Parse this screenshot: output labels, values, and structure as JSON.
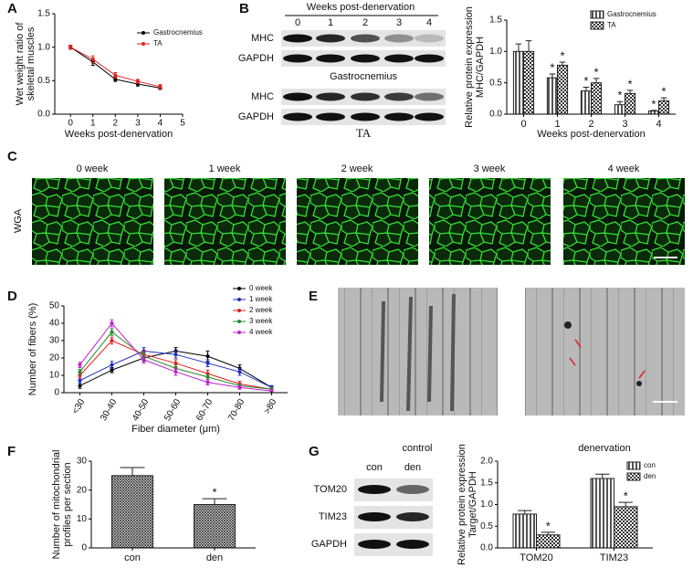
{
  "panel_labels": [
    "A",
    "B",
    "C",
    "D",
    "E",
    "F",
    "G"
  ],
  "blot_b": {
    "header": "Weeks post-denervation",
    "lanes": [
      "0",
      "1",
      "2",
      "3",
      "4"
    ],
    "rows": [
      "MHC",
      "GAPDH"
    ],
    "captions": [
      "Gastrocnemius",
      "TA"
    ]
  },
  "wga": {
    "row_label": "WGA",
    "columns": [
      "0 week",
      "1 week",
      "2 week",
      "3 week",
      "4 week"
    ]
  },
  "em": {
    "captions": [
      "control",
      "denervation"
    ]
  },
  "blot_g": {
    "lanes": [
      "con",
      "den"
    ],
    "rows": [
      "TOM20",
      "TIM23",
      "GAPDH"
    ]
  },
  "chart_data": [
    {
      "type": "line",
      "x": [
        0,
        1,
        2,
        3,
        4
      ],
      "xlim": [
        -0.7,
        5
      ],
      "xticks": [
        0,
        1,
        2,
        3,
        4,
        5
      ],
      "ylim": [
        0,
        1.5
      ],
      "yticks": [
        {
          "value": 0,
          "label": "0.0"
        },
        {
          "value": 0.5,
          "label": "0.5"
        },
        {
          "value": 1,
          "label": "1.0"
        },
        {
          "value": 1.5,
          "label": "1.5"
        }
      ],
      "ylabel_lines": [
        "Wet weight ratio of",
        "skeletal muscles"
      ],
      "xlabel": "Weeks post-denervation",
      "legend": "upper-right",
      "series": [
        {
          "name": "Gastrocnemius",
          "color": "#000000",
          "values": [
            1.0,
            0.78,
            0.52,
            0.45,
            0.39
          ],
          "errors": [
            0.03,
            0.05,
            0.03,
            0.03,
            0.02
          ]
        },
        {
          "name": "TA",
          "color": "#e02020",
          "values": [
            1.0,
            0.82,
            0.58,
            0.49,
            0.41
          ],
          "errors": [
            0.03,
            0.05,
            0.04,
            0.03,
            0.03
          ]
        }
      ]
    },
    {
      "type": "bar",
      "categories": [
        "0",
        "1",
        "2",
        "3",
        "4"
      ],
      "ylim": [
        0,
        1.5
      ],
      "yticks": [
        {
          "value": 0,
          "label": "0.0"
        },
        {
          "value": 0.5,
          "label": "0.5"
        },
        {
          "value": 1,
          "label": "1.0"
        },
        {
          "value": 1.5,
          "label": "1.5"
        }
      ],
      "ylabel_lines": [
        "Relative protein expression",
        "MHC/GAPDH"
      ],
      "xlabel": "Weeks post-denervation",
      "legend": "upper-right",
      "series": [
        {
          "name": "Gastrocnemius",
          "color": "#555555",
          "pattern": "stripes",
          "values": [
            1.0,
            0.58,
            0.37,
            0.15,
            0.05
          ],
          "errors": [
            0.12,
            0.06,
            0.06,
            0.05,
            0.01
          ],
          "significance": [
            null,
            "*",
            "*",
            "*",
            "*"
          ]
        },
        {
          "name": "TA",
          "color": "#555555",
          "pattern": "checker",
          "values": [
            1.0,
            0.78,
            0.5,
            0.33,
            0.21
          ],
          "errors": [
            0.17,
            0.05,
            0.07,
            0.05,
            0.05
          ],
          "significance": [
            null,
            "*",
            "*",
            "*",
            "*"
          ]
        }
      ]
    },
    {
      "type": "line",
      "categories": [
        "<30",
        "30-40",
        "40-50",
        "50-60",
        "60-70",
        "70-80",
        ">80"
      ],
      "ylim": [
        0,
        50
      ],
      "yticks": [
        0,
        10,
        20,
        30,
        40,
        50
      ],
      "ylabel_lines": [
        "Number of fibers (%)"
      ],
      "xlabel": "Fiber diameter (μm)",
      "legend": "upper-right",
      "series": [
        {
          "name": "0 week",
          "color": "#000000",
          "values": [
            4,
            13,
            20,
            24,
            21,
            14,
            3
          ],
          "errors": [
            1.5,
            1.5,
            2,
            2,
            3,
            2,
            1
          ]
        },
        {
          "name": "1 week",
          "color": "#1f2fbf",
          "values": [
            7,
            16,
            24,
            22,
            17,
            12,
            3
          ],
          "errors": [
            1.5,
            2,
            2,
            2,
            2,
            2,
            1
          ]
        },
        {
          "name": "2 week",
          "color": "#e02020",
          "values": [
            10,
            30,
            22,
            17,
            11,
            5,
            2
          ],
          "errors": [
            1.5,
            2,
            2,
            2,
            2,
            1.5,
            1
          ]
        },
        {
          "name": "3 week",
          "color": "#2a8a2a",
          "values": [
            12,
            35,
            21,
            14,
            9,
            4,
            2
          ],
          "errors": [
            1.5,
            2,
            2,
            2,
            1.5,
            1,
            1
          ]
        },
        {
          "name": "4 week",
          "color": "#c020d0",
          "values": [
            16,
            40,
            19,
            12,
            6,
            3,
            1
          ],
          "errors": [
            1.5,
            2,
            2,
            2,
            1.5,
            1,
            1
          ]
        }
      ]
    },
    {
      "type": "bar",
      "categories": [
        "con",
        "den"
      ],
      "ylim": [
        0,
        30
      ],
      "yticks": [
        0,
        10,
        20,
        30
      ],
      "ylabel_lines": [
        "Number of mitochondrial",
        "profiles per section"
      ],
      "series": [
        {
          "color": "#333333",
          "pattern": "hatch",
          "values": [
            25,
            15
          ],
          "errors": [
            2.8,
            2.0
          ],
          "significance": [
            null,
            "*"
          ]
        }
      ]
    },
    {
      "type": "bar",
      "categories": [
        "TOM20",
        "TIM23"
      ],
      "ylim": [
        0,
        2
      ],
      "yticks": [
        {
          "value": 0,
          "label": "0.0"
        },
        {
          "value": 0.5,
          "label": "0.5"
        },
        {
          "value": 1,
          "label": "1.0"
        },
        {
          "value": 1.5,
          "label": "1.5"
        },
        {
          "value": 2,
          "label": "2.0"
        }
      ],
      "ylabel_lines": [
        "Relative protein expression",
        "Target/GAPDH"
      ],
      "legend": "upper-right",
      "series": [
        {
          "name": "con",
          "color": "#555555",
          "pattern": "stripes",
          "values": [
            0.78,
            1.6
          ],
          "errors": [
            0.08,
            0.1
          ],
          "significance": [
            null,
            null
          ]
        },
        {
          "name": "den",
          "color": "#555555",
          "pattern": "checker",
          "values": [
            0.3,
            0.95
          ],
          "errors": [
            0.06,
            0.1
          ],
          "significance": [
            "*",
            "*"
          ]
        }
      ]
    }
  ]
}
